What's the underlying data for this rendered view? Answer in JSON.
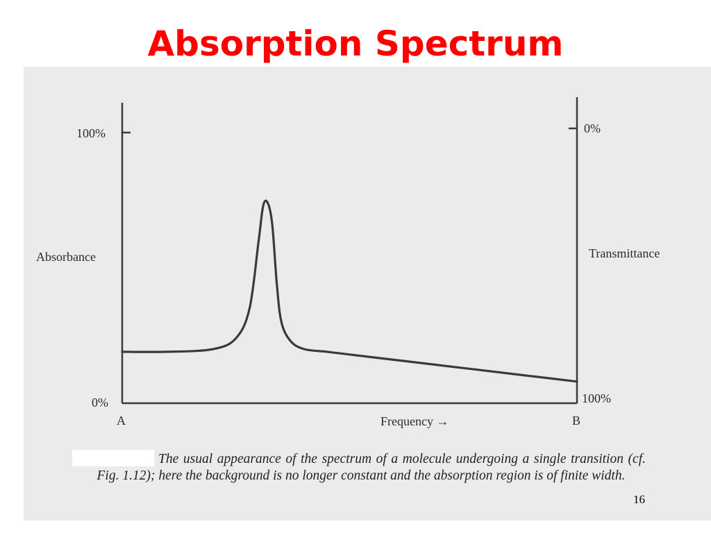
{
  "slide": {
    "title": "Absorption Spectrum",
    "page_number": "16",
    "caption": "The usual appearance of the spectrum of a molecule undergoing a single transition (cf. Fig. 1.12); here the background is no longer constant and the absorption region is of finite width."
  },
  "colors": {
    "title": "#ff0000",
    "scan_background": "#ebebeb",
    "ink": "#3a3a3a"
  },
  "chart_data": {
    "type": "line",
    "xlabel": "Frequency →",
    "ylabel": "Absorbance",
    "y2label": "Transmittance",
    "x_tick_labels": [
      "A",
      "B"
    ],
    "y_tick_labels": [
      "0%",
      "100%"
    ],
    "y2_tick_labels": [
      "100%",
      "0%"
    ],
    "xlim": [
      0,
      1
    ],
    "ylim": [
      0,
      100
    ],
    "x_axis_numeric_labels": false,
    "grid": false,
    "legend": "none",
    "series": [
      {
        "x": [
          0.0,
          0.1,
          0.2,
          0.25,
          0.28,
          0.3,
          0.31,
          0.32,
          0.33,
          0.34,
          0.35,
          0.37,
          0.4,
          0.45,
          0.5,
          0.6,
          0.7,
          0.8,
          0.9,
          1.0
        ],
        "y": [
          19,
          19,
          20,
          24,
          35,
          60,
          73,
          74,
          66,
          44,
          30,
          23,
          20,
          19,
          18,
          16,
          14,
          12,
          10,
          8
        ]
      }
    ]
  }
}
